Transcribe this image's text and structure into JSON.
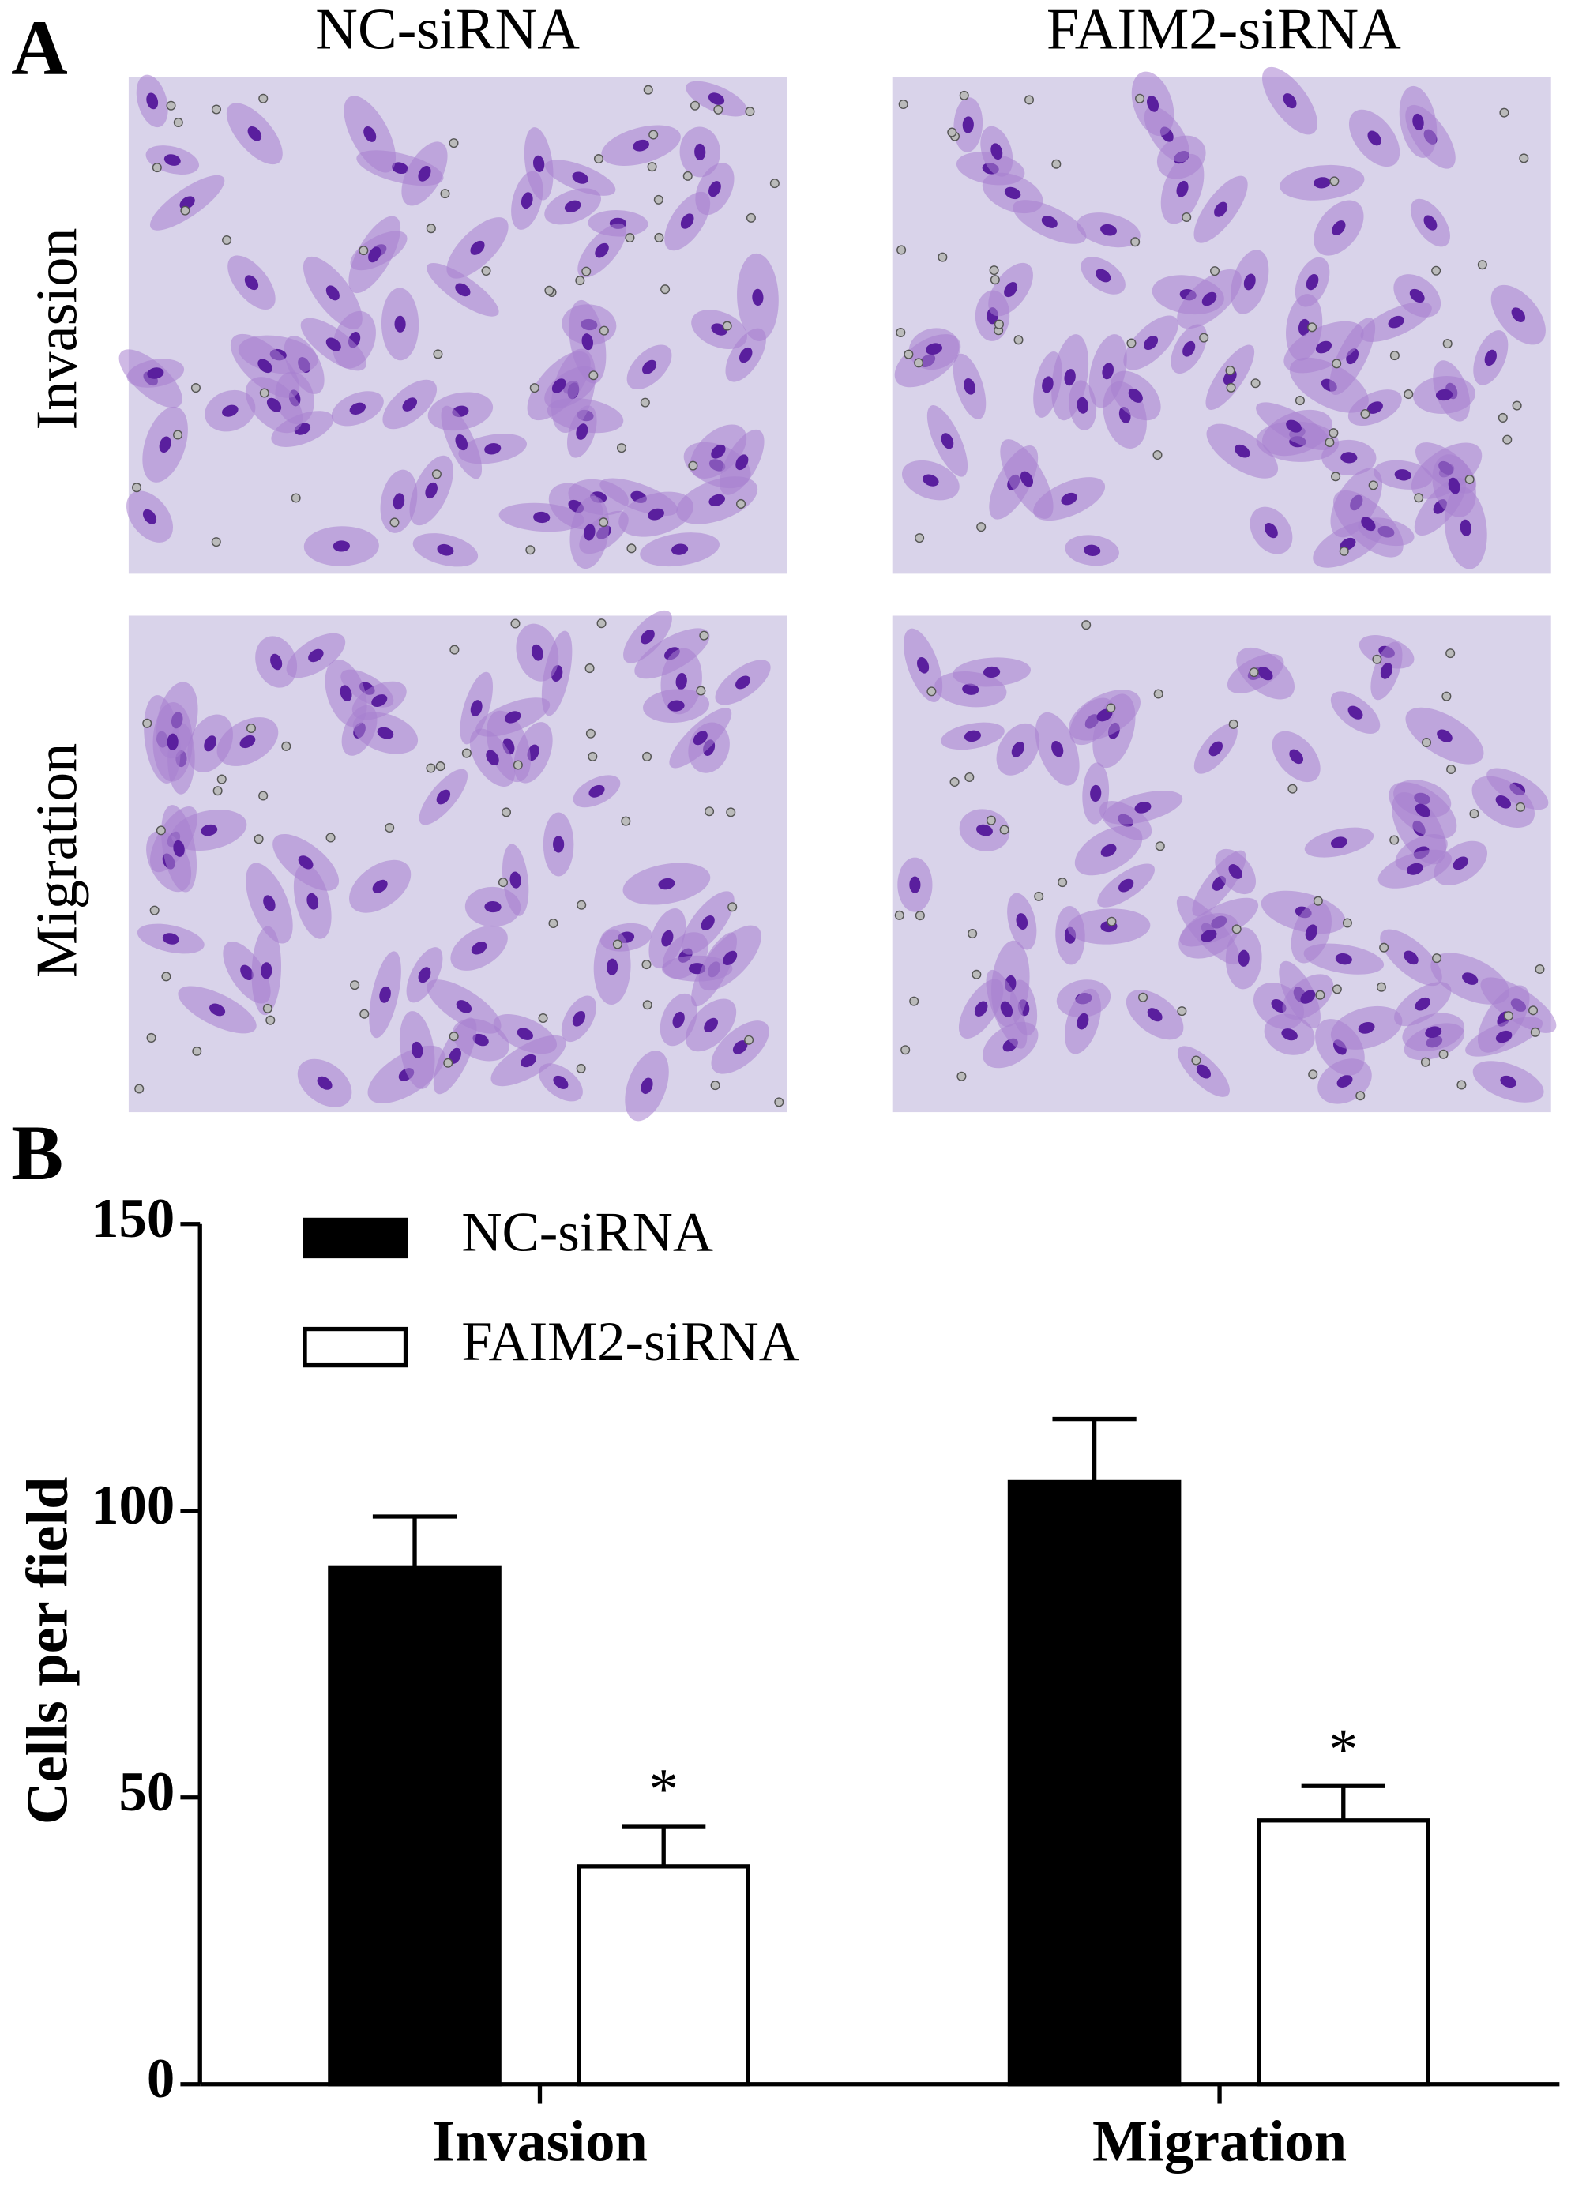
{
  "panel_a": {
    "label": "A",
    "columns": [
      "NC-siRNA",
      "FAIM2-siRNA"
    ],
    "rows": [
      "Invasion",
      "Migration"
    ]
  },
  "panel_b_label": "B",
  "chart_data": {
    "type": "bar",
    "ylabel": "Cells per field",
    "categories": [
      "Invasion",
      "Migration"
    ],
    "series": [
      {
        "name": "NC-siRNA",
        "color": "#000000",
        "values": [
          90,
          105
        ],
        "errors": [
          9,
          11
        ]
      },
      {
        "name": "FAIM2-siRNA",
        "color": "#ffffff",
        "values": [
          38,
          46
        ],
        "errors": [
          7,
          6
        ],
        "significance": [
          "*",
          "*"
        ]
      }
    ],
    "ylim": [
      0,
      150
    ],
    "yticks": [
      0,
      50,
      100,
      150
    ],
    "grid": false,
    "legend": "top-left"
  }
}
